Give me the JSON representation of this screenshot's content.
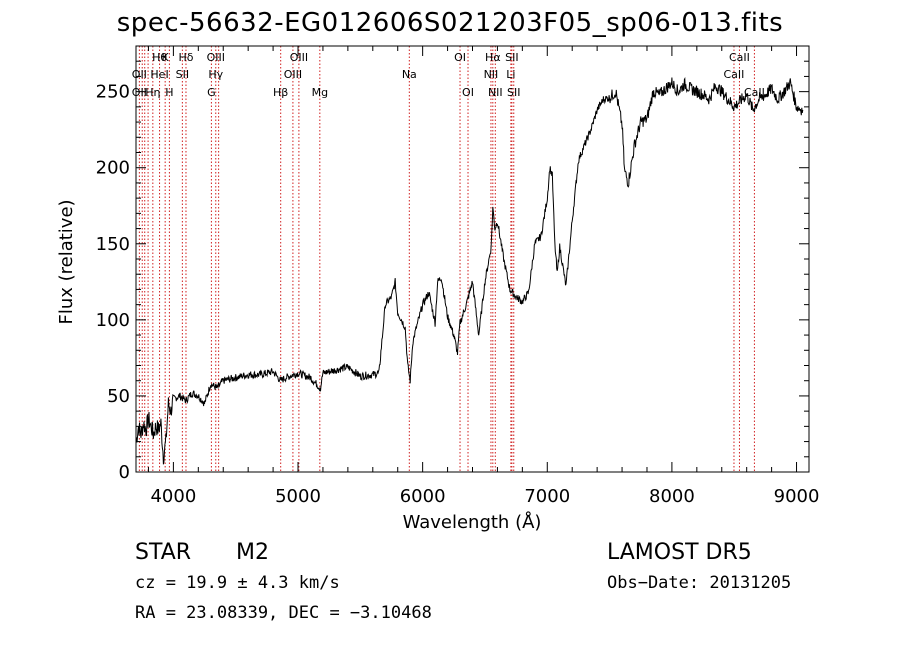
{
  "chart_data": {
    "type": "line",
    "title": "spec-56632-EG012606S021203F05_sp06-013.fits",
    "xlabel": "Wavelength (Å)",
    "ylabel": "Flux (relative)",
    "xlim": [
      3700,
      9100
    ],
    "ylim": [
      0,
      280
    ],
    "xticks": [
      4000,
      5000,
      6000,
      7000,
      8000,
      9000
    ],
    "yticks": [
      0,
      50,
      100,
      150,
      200,
      250
    ],
    "grid": false,
    "series": [
      {
        "x": [
          3700,
          3720,
          3740,
          3760,
          3780,
          3800,
          3820,
          3840,
          3860,
          3880,
          3900,
          3920,
          3940,
          3960,
          3980,
          4000,
          4050,
          4100,
          4150,
          4200,
          4250,
          4300,
          4350,
          4400,
          4500,
          4600,
          4700,
          4800,
          4860,
          4900,
          5000,
          5100,
          5180,
          5200,
          5300,
          5400,
          5500,
          5600,
          5650,
          5700,
          5750,
          5780,
          5800,
          5830,
          5860,
          5880,
          5900,
          5920,
          5950,
          6000,
          6050,
          6100,
          6120,
          6150,
          6200,
          6250,
          6280,
          6300,
          6350,
          6400,
          6450,
          6500,
          6550,
          6563,
          6580,
          6600,
          6650,
          6700,
          6750,
          6800,
          6850,
          6900,
          6950,
          7000,
          7020,
          7040,
          7060,
          7080,
          7100,
          7150,
          7200,
          7250,
          7300,
          7350,
          7400,
          7450,
          7500,
          7550,
          7600,
          7620,
          7650,
          7700,
          7750,
          7800,
          7850,
          7900,
          7950,
          8000,
          8050,
          8100,
          8150,
          8200,
          8250,
          8300,
          8350,
          8400,
          8450,
          8500,
          8550,
          8600,
          8650,
          8700,
          8750,
          8800,
          8850,
          8900,
          8950,
          9000,
          9050
        ],
        "y": [
          20,
          30,
          25,
          32,
          28,
          35,
          30,
          25,
          30,
          28,
          32,
          10,
          20,
          45,
          40,
          48,
          50,
          47,
          52,
          50,
          45,
          58,
          55,
          60,
          62,
          64,
          64,
          66,
          60,
          62,
          65,
          62,
          55,
          65,
          67,
          69,
          63,
          64,
          65,
          110,
          115,
          125,
          105,
          100,
          95,
          70,
          60,
          85,
          95,
          110,
          118,
          98,
          125,
          128,
          102,
          90,
          78,
          98,
          110,
          125,
          90,
          125,
          148,
          174,
          160,
          165,
          140,
          120,
          115,
          112,
          118,
          150,
          155,
          180,
          200,
          195,
          150,
          130,
          148,
          122,
          165,
          205,
          215,
          225,
          238,
          245,
          246,
          250,
          228,
          198,
          190,
          215,
          230,
          232,
          250,
          248,
          252,
          256,
          250,
          255,
          252,
          250,
          248,
          245,
          254,
          250,
          245,
          240,
          244,
          248,
          238,
          245,
          248,
          252,
          245,
          250,
          256,
          240,
          238
        ]
      }
    ],
    "line_labels_row1": [
      {
        "x": 3890,
        "text": "Hθ"
      },
      {
        "x": 3934,
        "text": "K"
      },
      {
        "x": 4101,
        "text": "Hδ"
      },
      {
        "x": 4340,
        "text": "OIII"
      },
      {
        "x": 5007,
        "text": "OIII"
      },
      {
        "x": 6300,
        "text": "OI"
      },
      {
        "x": 6563,
        "text": "Hα"
      },
      {
        "x": 6716,
        "text": "SII"
      },
      {
        "x": 8542,
        "text": "CaII"
      }
    ],
    "line_labels_row2": [
      {
        "x": 3727,
        "text": "OII"
      },
      {
        "x": 3889,
        "text": "HeI"
      },
      {
        "x": 4072,
        "text": "SII"
      },
      {
        "x": 4340,
        "text": "Hγ"
      },
      {
        "x": 4959,
        "text": "OIII"
      },
      {
        "x": 5893,
        "text": "Na"
      },
      {
        "x": 6548,
        "text": "NII"
      },
      {
        "x": 6708,
        "text": "Li"
      },
      {
        "x": 8498,
        "text": "CaII"
      }
    ],
    "line_labels_row3": [
      {
        "x": 3727,
        "text": "OII"
      },
      {
        "x": 3835,
        "text": "Hη"
      },
      {
        "x": 3968,
        "text": "H"
      },
      {
        "x": 4305,
        "text": "G"
      },
      {
        "x": 4861,
        "text": "Hβ"
      },
      {
        "x": 5175,
        "text": "Mg"
      },
      {
        "x": 6364,
        "text": "OI"
      },
      {
        "x": 6583,
        "text": "NII"
      },
      {
        "x": 6731,
        "text": "SII"
      },
      {
        "x": 8662,
        "text": "CaII"
      }
    ],
    "line_positions": [
      3727,
      3750,
      3770,
      3797,
      3835,
      3889,
      3934,
      3968,
      4072,
      4101,
      4305,
      4340,
      4363,
      4861,
      4959,
      5007,
      5175,
      5893,
      6300,
      6364,
      6548,
      6563,
      6583,
      6708,
      6716,
      6731,
      8498,
      8542,
      8662
    ],
    "line_color": "#d02020"
  },
  "info": {
    "class": "STAR",
    "subclass": "M2",
    "cz": "cz = 19.9 ± 4.3 km/s",
    "radec": "RA =  23.08339, DEC =  −3.10468",
    "survey": "LAMOST  DR5",
    "obsdate": "Obs−Date: 20131205"
  }
}
